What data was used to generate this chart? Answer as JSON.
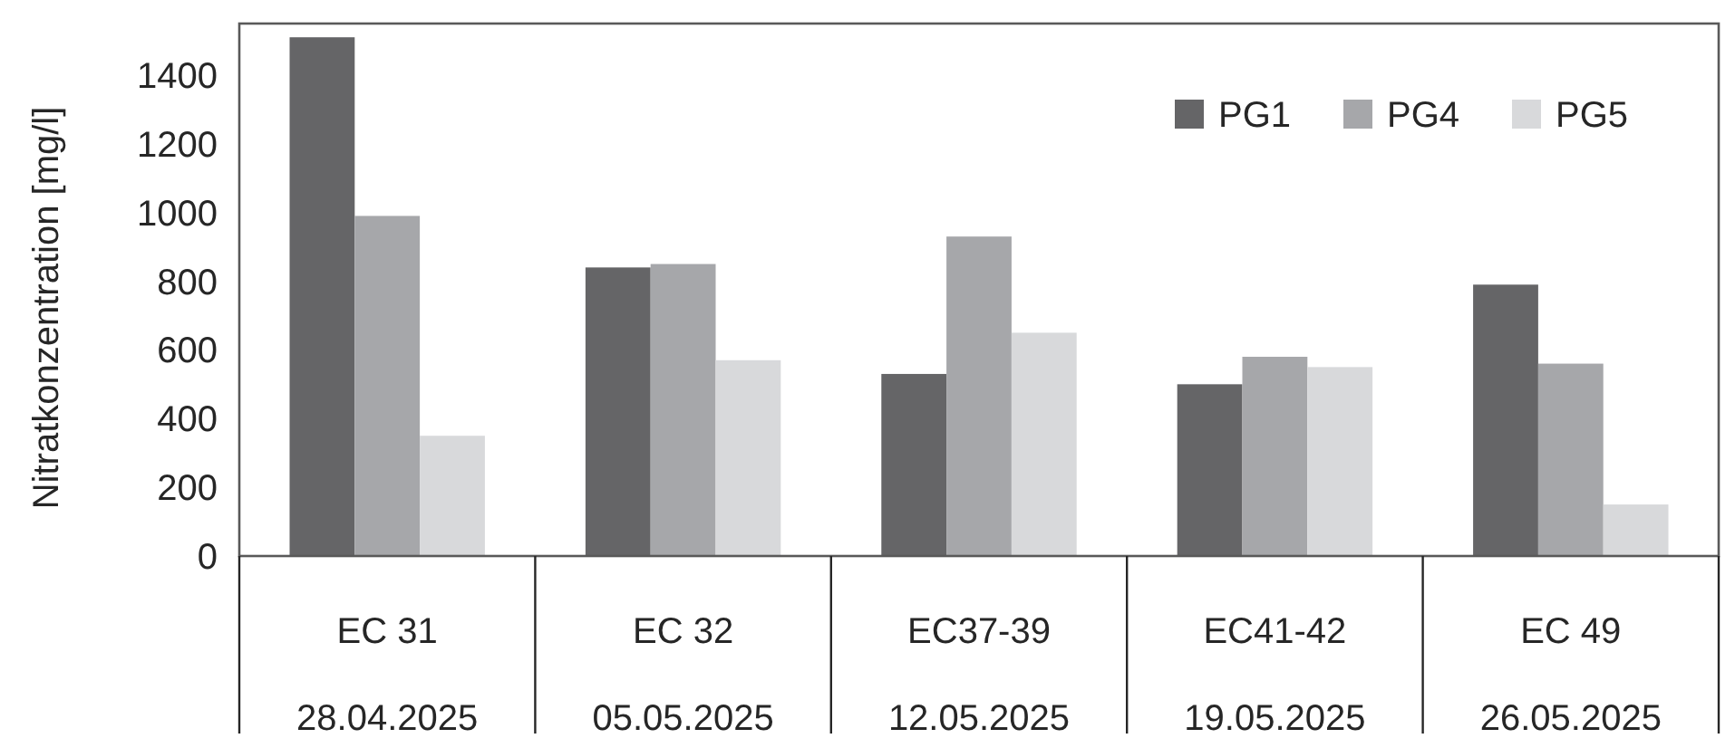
{
  "chart_data": {
    "type": "bar",
    "ylabel": "Nitratkonzentration [mg/l]",
    "categories": [
      "EC 31\n28.04.2025",
      "EC 32\n05.05.2025",
      "EC37-39\n12.05.2025",
      "EC41-42\n19.05.2025",
      "EC 49\n26.05.2025"
    ],
    "series": [
      {
        "name": "PG1",
        "color": "#656567",
        "values": [
          1510,
          840,
          530,
          500,
          790
        ]
      },
      {
        "name": "PG4",
        "color": "#a6a7aa",
        "values": [
          990,
          850,
          930,
          580,
          560
        ]
      },
      {
        "name": "PG5",
        "color": "#d8d9db",
        "values": [
          350,
          570,
          650,
          550,
          150
        ]
      }
    ],
    "ylim": [
      0,
      1550
    ],
    "yticks": [
      0,
      200,
      400,
      600,
      800,
      1000,
      1200,
      1400
    ],
    "grid": false,
    "legend": "top right"
  }
}
